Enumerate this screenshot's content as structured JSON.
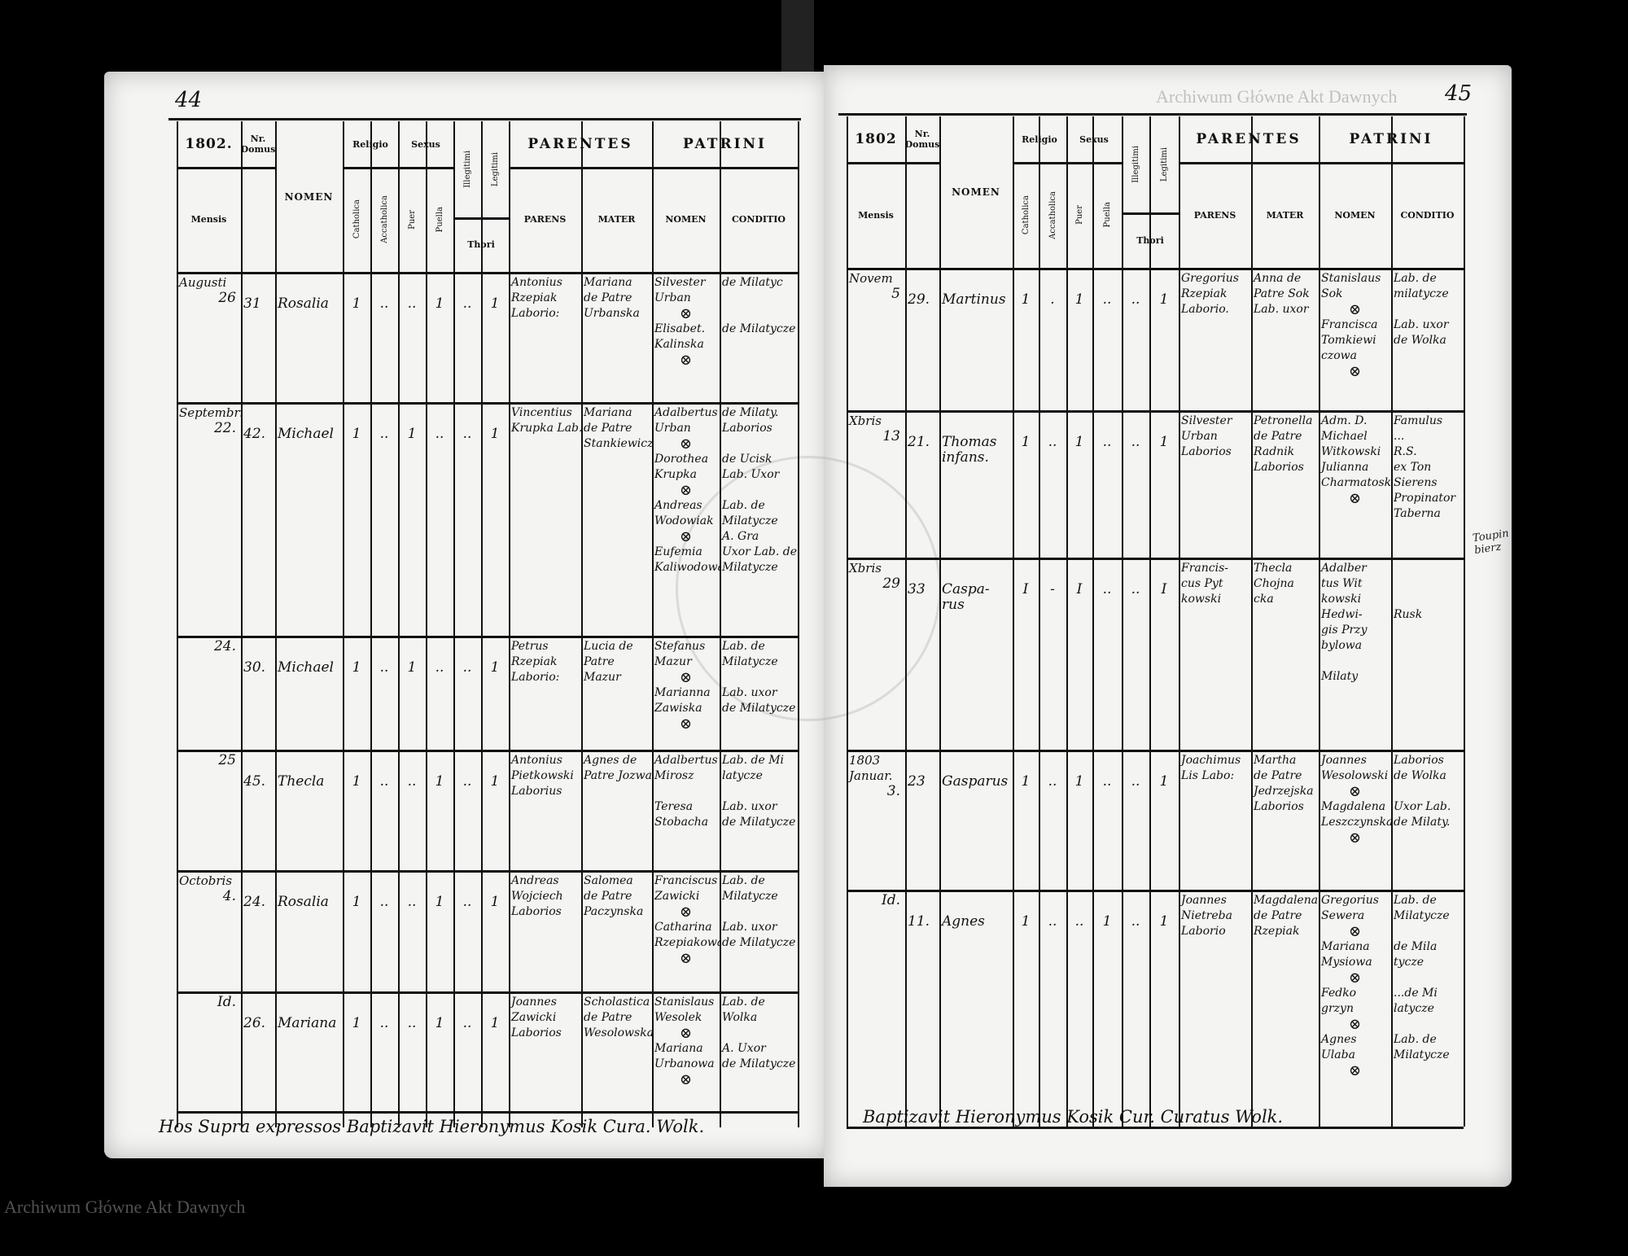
{
  "watermark": "Archiwum Główne Akt Dawnych",
  "header": {
    "nr_domus": "Nr. Domus",
    "nomen": "NOMEN",
    "mensis": "Mensis",
    "religio": "Religio",
    "sexus": "Sexus",
    "catholica": "Catholica",
    "accatholica": "Accatholica",
    "puer": "Puer",
    "puella": "Puella",
    "illegitimi": "Illegitimi",
    "legitimi": "Legitimi",
    "thori": "Thori",
    "parentes": "PARENTES",
    "parens": "PARENS",
    "mater": "MATER",
    "patrini": "PATRINI",
    "patrini_nomen": "NOMEN",
    "conditio": "CONDITIO"
  },
  "pages": [
    {
      "page_number": "44",
      "year": "1802.",
      "footer": "Hos Supra expressos Baptizavit Hieronymus Kosik Cura. Wolk.",
      "entries": [
        {
          "month": "Augusti",
          "day": "26",
          "nr": "31",
          "nomen": "Rosalia",
          "cath": "1",
          "acath": "..",
          "puer": "..",
          "puella": "1",
          "illeg": "..",
          "leg": "1",
          "parens": [
            "Antonius",
            "Rzepiak",
            "Laborio:"
          ],
          "mater": [
            "Mariana",
            "de Patre",
            "Urbanska"
          ],
          "patrini": [
            "Silvester",
            "Urban",
            "⊗",
            "Elisabet.",
            "Kalinska",
            "⊗"
          ],
          "conditio": [
            "de Milatyc",
            "",
            "",
            "de Milatycze"
          ]
        },
        {
          "month": "Septembris",
          "day": "22.",
          "nr": "42.",
          "nomen": "Michael",
          "cath": "1",
          "acath": "..",
          "puer": "1",
          "puella": "..",
          "illeg": "..",
          "leg": "1",
          "parens": [
            "Vincentius",
            "Krupka Lab."
          ],
          "mater": [
            "Mariana",
            "de Patre",
            "Stankiewicz"
          ],
          "patrini": [
            "Adalbertus",
            "Urban",
            "⊗",
            "Dorothea",
            "Krupka",
            "⊗",
            "Andreas",
            "Wodowiak",
            "⊗",
            "Eufemia",
            "Kaliwodowa"
          ],
          "conditio": [
            "de Milaty.",
            "Laborios",
            "",
            "de Ucisk",
            "Lab. Uxor",
            "",
            "Lab. de",
            "Milatycze",
            "A. Gra",
            "Uxor Lab. de",
            "Milatycze"
          ]
        },
        {
          "month": "",
          "day": "24.",
          "nr": "30.",
          "nomen": "Michael",
          "cath": "1",
          "acath": "..",
          "puer": "1",
          "puella": "..",
          "illeg": "..",
          "leg": "1",
          "parens": [
            "Petrus",
            "Rzepiak",
            "Laborio:"
          ],
          "mater": [
            "Lucia de",
            "Patre",
            "Mazur"
          ],
          "patrini": [
            "Stefanus",
            "Mazur",
            "⊗",
            "Marianna",
            "Zawiska",
            "⊗"
          ],
          "conditio": [
            "Lab. de",
            "Milatycze",
            "",
            "Lab. uxor",
            "de Milatycze"
          ]
        },
        {
          "month": "",
          "day": "25",
          "nr": "45.",
          "nomen": "Thecla",
          "cath": "1",
          "acath": "..",
          "puer": "..",
          "puella": "1",
          "illeg": "..",
          "leg": "1",
          "parens": [
            "Antonius",
            "Pietkowski",
            "Laborius"
          ],
          "mater": [
            "Agnes de",
            "Patre Jozwa"
          ],
          "patrini": [
            "Adalbertus",
            "Mirosz",
            "",
            "Teresa",
            "Stobacha"
          ],
          "conditio": [
            "Lab. de Mi",
            "latycze",
            "",
            "Lab. uxor",
            "de Milatycze"
          ]
        },
        {
          "month": "Octobris",
          "day": "4.",
          "nr": "24.",
          "nomen": "Rosalia",
          "cath": "1",
          "acath": "..",
          "puer": "..",
          "puella": "1",
          "illeg": "..",
          "leg": "1",
          "parens": [
            "Andreas",
            "Wojciech",
            "Laborios"
          ],
          "mater": [
            "Salomea",
            "de Patre",
            "Paczynska"
          ],
          "patrini": [
            "Franciscus",
            "Zawicki",
            "⊗",
            "Catharina",
            "Rzepiakowa",
            "⊗"
          ],
          "conditio": [
            "Lab. de",
            "Milatycze",
            "",
            "Lab. uxor",
            "de Milatycze"
          ]
        },
        {
          "month": "",
          "day": "Id.",
          "nr": "26.",
          "nomen": "Mariana",
          "cath": "1",
          "acath": "..",
          "puer": "..",
          "puella": "1",
          "illeg": "..",
          "leg": "1",
          "parens": [
            "Joannes",
            "Zawicki",
            "Laborios"
          ],
          "mater": [
            "Scholastica",
            "de Patre",
            "Wesolowska"
          ],
          "patrini": [
            "Stanislaus",
            "Wesolek",
            "⊗",
            "Mariana",
            "Urbanowa",
            "⊗"
          ],
          "conditio": [
            "Lab. de",
            "Wolka",
            "",
            "A. Uxor",
            "de Milatycze"
          ]
        }
      ]
    },
    {
      "page_number": "45",
      "year": "1802",
      "footer": "Baptizavit Hieronymus Kosik Cur. Curatus Wolk.",
      "margin_note": "Toupin bierz",
      "entries": [
        {
          "month": "Novem",
          "day": "5",
          "nr": "29.",
          "nomen": "Martinus",
          "cath": "1",
          "acath": ".",
          "puer": "1",
          "puella": "..",
          "illeg": "..",
          "leg": "1",
          "parens": [
            "Gregorius",
            "Rzepiak",
            "Laborio."
          ],
          "mater": [
            "Anna de",
            "Patre Sok",
            "Lab. uxor"
          ],
          "patrini": [
            "Stanislaus",
            "Sok",
            "⊗",
            "Francisca",
            "Tomkiewi",
            "czowa",
            "⊗"
          ],
          "conditio": [
            "Lab. de",
            "milatycze",
            "",
            "Lab. uxor",
            "de Wolka"
          ]
        },
        {
          "month": "Xbris",
          "day": "13",
          "nr": "21.",
          "nomen": "Thomas infans.",
          "cath": "1",
          "acath": "..",
          "puer": "1",
          "puella": "..",
          "illeg": "..",
          "leg": "1",
          "parens": [
            "Silvester",
            "Urban",
            "Laborios"
          ],
          "mater": [
            "Petronella",
            "de Patre",
            "Radnik",
            "Laborios"
          ],
          "patrini": [
            "Adm. D.",
            "Michael",
            "Witkowski",
            "Julianna",
            "Charmatoska",
            "⊗"
          ],
          "conditio": [
            "Famulus",
            "...",
            "R.S.",
            "ex Ton",
            "Sierens",
            "Propinator",
            "Taberna"
          ]
        },
        {
          "month": "Xbris",
          "day": "29",
          "nr": "33",
          "nomen": "Caspa- rus",
          "cath": "I",
          "acath": "-",
          "puer": "I",
          "puella": "..",
          "illeg": "..",
          "leg": "I",
          "parens": [
            "Francis-",
            "cus Pyt",
            "kowski"
          ],
          "mater": [
            "Thecla",
            "Chojna",
            "cka"
          ],
          "patrini": [
            "Adalber",
            "tus Wit",
            "kowski",
            "Hedwi-",
            "gis Przy",
            "bylowa",
            "",
            "Milaty"
          ],
          "conditio": [
            "",
            "",
            "",
            "Rusk"
          ]
        },
        {
          "month": "1803 Januar.",
          "day": "3.",
          "nr": "23",
          "nomen": "Gasparus",
          "cath": "1",
          "acath": "..",
          "puer": "1",
          "puella": "..",
          "illeg": "..",
          "leg": "1",
          "parens": [
            "Joachimus",
            "Lis Labo:"
          ],
          "mater": [
            "Martha",
            "de Patre",
            "Jedrzejska",
            "Laborios"
          ],
          "patrini": [
            "Joannes",
            "Wesolowski",
            "⊗",
            "Magdalena",
            "Leszczynska",
            "⊗"
          ],
          "conditio": [
            "Laborios",
            "de Wolka",
            "",
            "Uxor Lab.",
            "de Milaty."
          ]
        },
        {
          "month": "",
          "day": "Id.",
          "nr": "11.",
          "nomen": "Agnes",
          "cath": "1",
          "acath": "..",
          "puer": "..",
          "puella": "1",
          "illeg": "..",
          "leg": "1",
          "parens": [
            "Joannes",
            "Nietreba",
            "Laborio"
          ],
          "mater": [
            "Magdalena",
            "de Patre",
            "Rzepiak"
          ],
          "patrini": [
            "Gregorius",
            "Sewera",
            "⊗",
            "Mariana",
            "Mysiowa",
            "⊗",
            "Fedko",
            "grzyn",
            "⊗",
            "Agnes",
            "Ulaba",
            "⊗"
          ],
          "conditio": [
            "Lab. de",
            "Milatycze",
            "",
            "de Mila",
            "tycze",
            "",
            "...de Mi",
            "latycze",
            "",
            "Lab. de",
            "Milatycze"
          ]
        }
      ]
    }
  ]
}
